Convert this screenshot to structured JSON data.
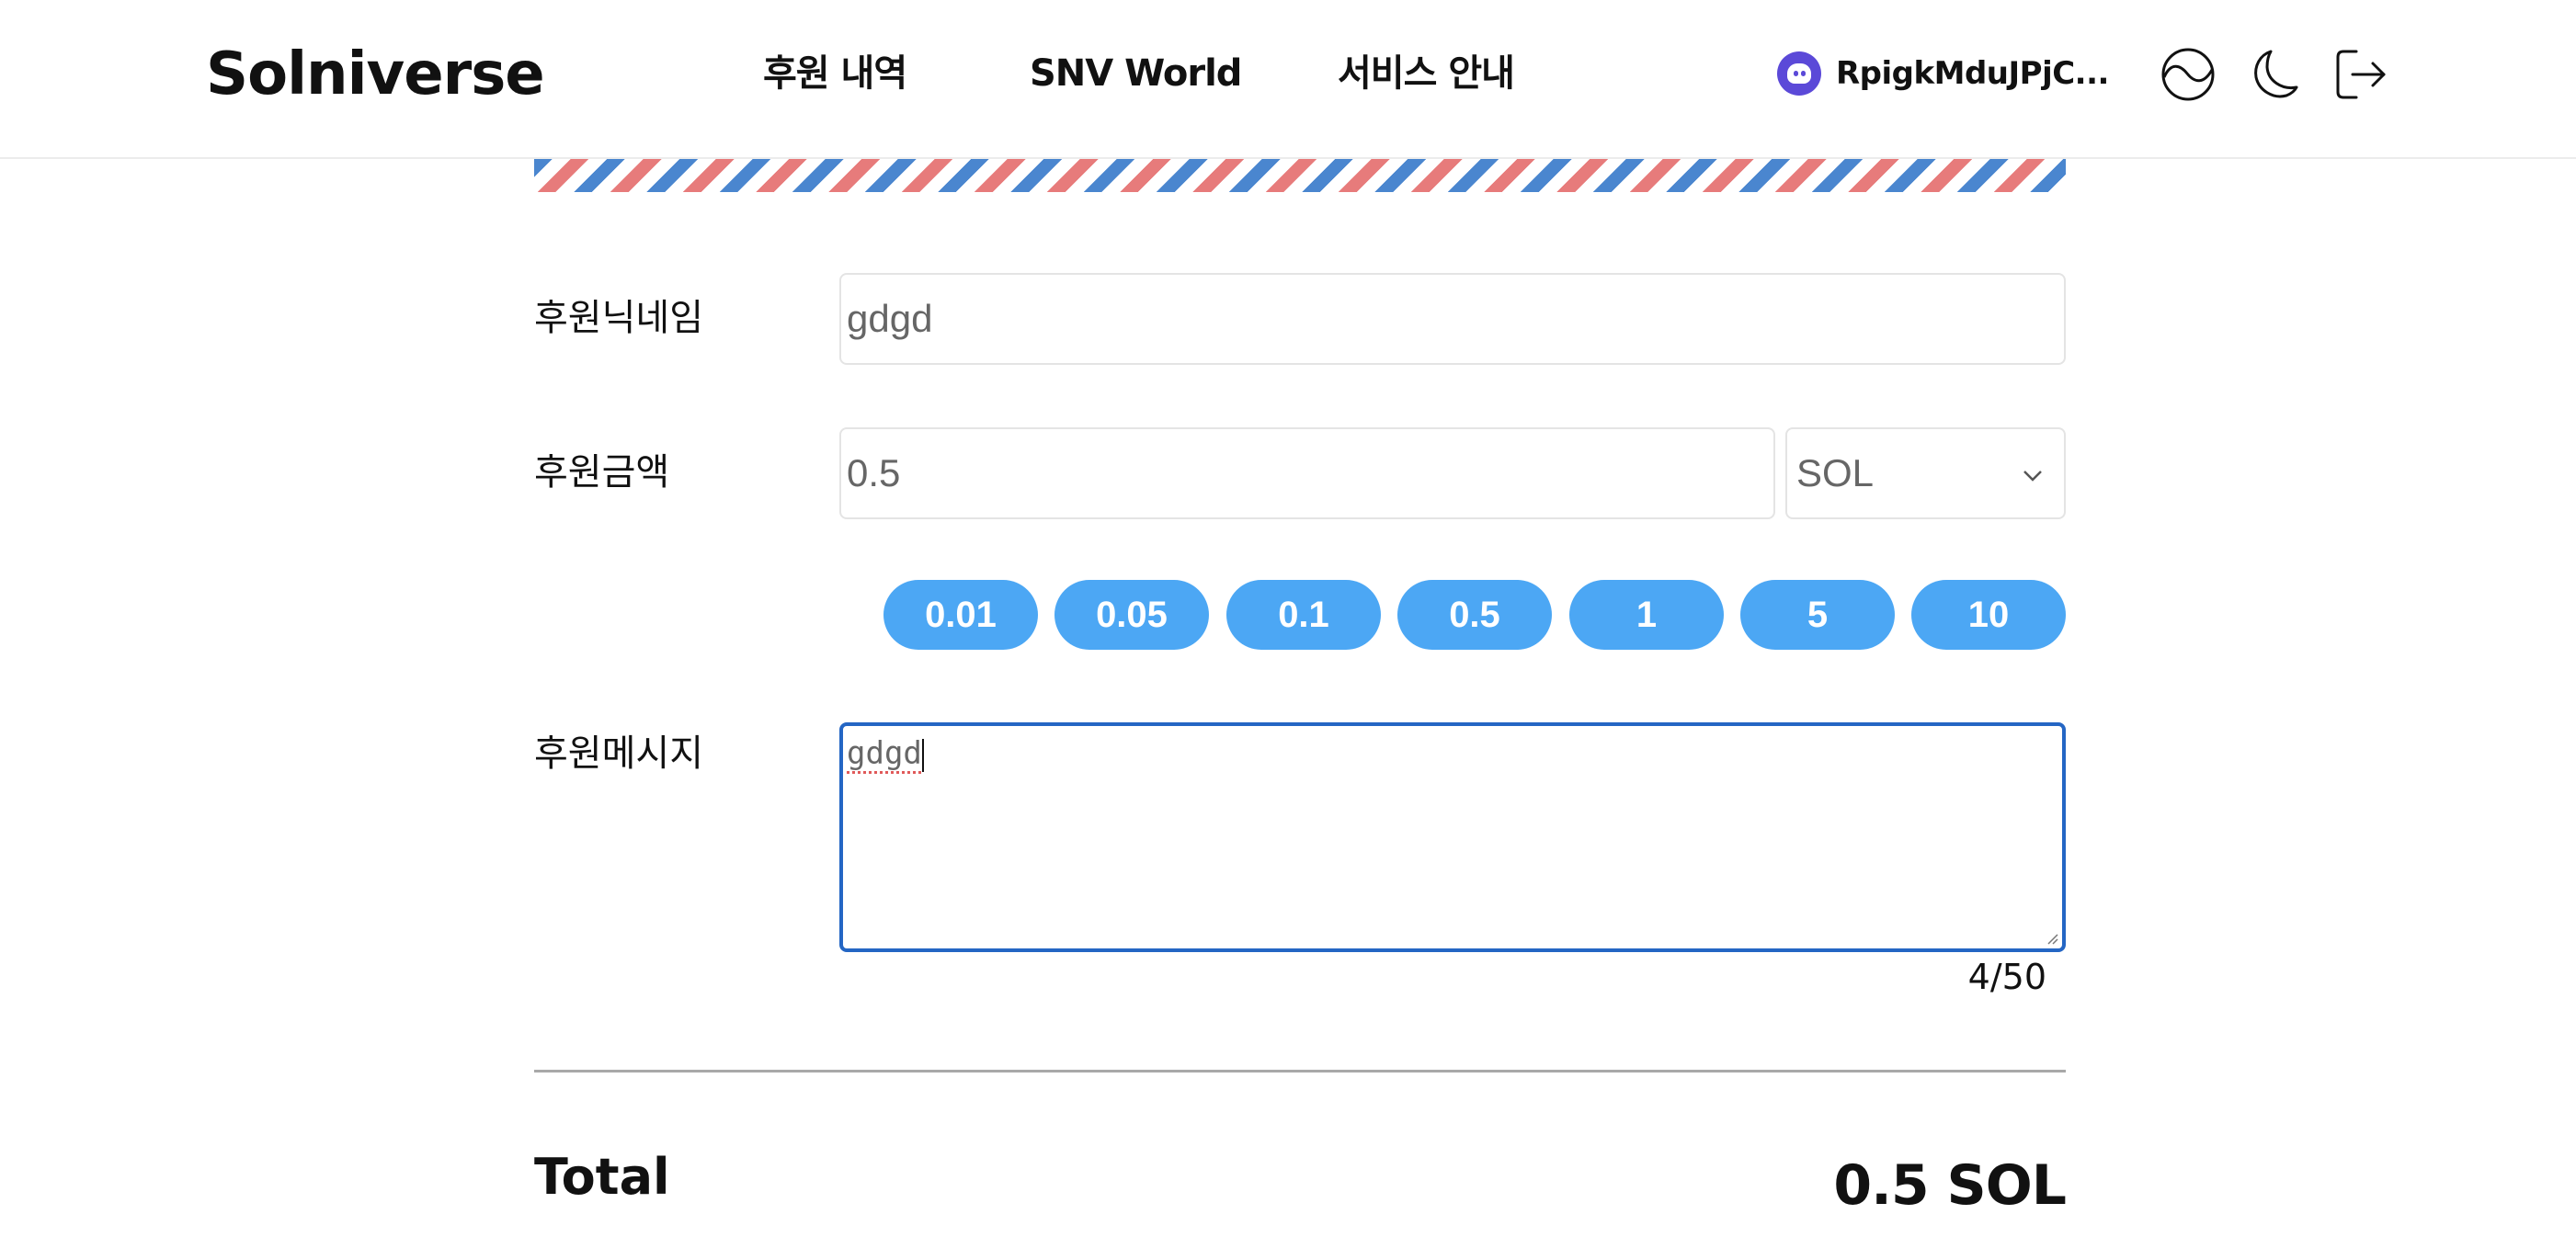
{
  "header": {
    "logo": "Solniverse",
    "nav": [
      "후원 내역",
      "SNV World",
      "서비스 안내"
    ],
    "wallet_address": "RpigkMduJPjC..."
  },
  "icons": {
    "theme_toggle": "half-moon-circle-icon",
    "dark_mode": "moon-icon",
    "logout": "logout-icon",
    "wallet": "phantom-ghost-icon"
  },
  "form": {
    "nickname_label": "후원닉네임",
    "nickname_value": "gdgd",
    "amount_label": "후원금액",
    "amount_value": "0.5",
    "currency_selected": "SOL",
    "presets": [
      "0.01",
      "0.05",
      "0.1",
      "0.5",
      "1",
      "5",
      "10"
    ],
    "message_label": "후원메시지",
    "message_value": "gdgd",
    "message_counter": "4/50"
  },
  "total": {
    "label": "Total",
    "value": "0.5 SOL"
  },
  "colors": {
    "accent_blue": "#4ca7f4",
    "focus_border": "#2466c4",
    "stripe_blue": "#4a86cf",
    "stripe_red": "#e77b7b",
    "wallet_purple": "#5b49d8"
  }
}
